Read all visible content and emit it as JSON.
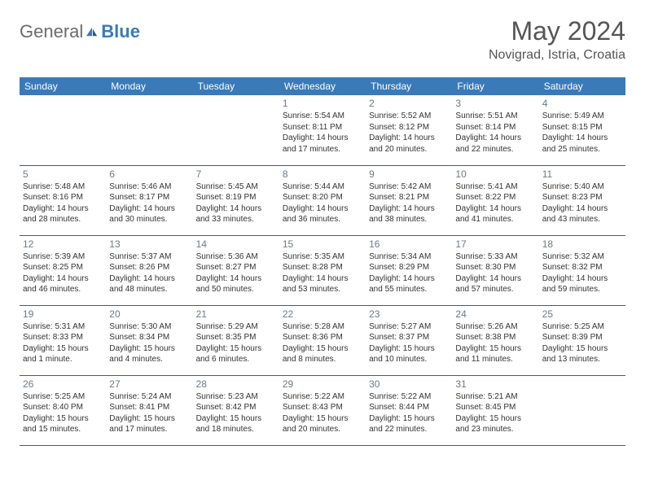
{
  "brand": {
    "part1": "General",
    "part2": "Blue"
  },
  "title": "May 2024",
  "location": "Novigrad, Istria, Croatia",
  "colors": {
    "header_bg": "#3a7ab8",
    "header_fg": "#ffffff",
    "border": "#3a5f7d",
    "daynum": "#6b7a88",
    "text": "#333333",
    "title": "#555555"
  },
  "dayHeaders": [
    "Sunday",
    "Monday",
    "Tuesday",
    "Wednesday",
    "Thursday",
    "Friday",
    "Saturday"
  ],
  "weeks": [
    [
      null,
      null,
      null,
      {
        "n": "1",
        "sr": "5:54 AM",
        "ss": "8:11 PM",
        "dl": "14 hours and 17 minutes."
      },
      {
        "n": "2",
        "sr": "5:52 AM",
        "ss": "8:12 PM",
        "dl": "14 hours and 20 minutes."
      },
      {
        "n": "3",
        "sr": "5:51 AM",
        "ss": "8:14 PM",
        "dl": "14 hours and 22 minutes."
      },
      {
        "n": "4",
        "sr": "5:49 AM",
        "ss": "8:15 PM",
        "dl": "14 hours and 25 minutes."
      }
    ],
    [
      {
        "n": "5",
        "sr": "5:48 AM",
        "ss": "8:16 PM",
        "dl": "14 hours and 28 minutes."
      },
      {
        "n": "6",
        "sr": "5:46 AM",
        "ss": "8:17 PM",
        "dl": "14 hours and 30 minutes."
      },
      {
        "n": "7",
        "sr": "5:45 AM",
        "ss": "8:19 PM",
        "dl": "14 hours and 33 minutes."
      },
      {
        "n": "8",
        "sr": "5:44 AM",
        "ss": "8:20 PM",
        "dl": "14 hours and 36 minutes."
      },
      {
        "n": "9",
        "sr": "5:42 AM",
        "ss": "8:21 PM",
        "dl": "14 hours and 38 minutes."
      },
      {
        "n": "10",
        "sr": "5:41 AM",
        "ss": "8:22 PM",
        "dl": "14 hours and 41 minutes."
      },
      {
        "n": "11",
        "sr": "5:40 AM",
        "ss": "8:23 PM",
        "dl": "14 hours and 43 minutes."
      }
    ],
    [
      {
        "n": "12",
        "sr": "5:39 AM",
        "ss": "8:25 PM",
        "dl": "14 hours and 46 minutes."
      },
      {
        "n": "13",
        "sr": "5:37 AM",
        "ss": "8:26 PM",
        "dl": "14 hours and 48 minutes."
      },
      {
        "n": "14",
        "sr": "5:36 AM",
        "ss": "8:27 PM",
        "dl": "14 hours and 50 minutes."
      },
      {
        "n": "15",
        "sr": "5:35 AM",
        "ss": "8:28 PM",
        "dl": "14 hours and 53 minutes."
      },
      {
        "n": "16",
        "sr": "5:34 AM",
        "ss": "8:29 PM",
        "dl": "14 hours and 55 minutes."
      },
      {
        "n": "17",
        "sr": "5:33 AM",
        "ss": "8:30 PM",
        "dl": "14 hours and 57 minutes."
      },
      {
        "n": "18",
        "sr": "5:32 AM",
        "ss": "8:32 PM",
        "dl": "14 hours and 59 minutes."
      }
    ],
    [
      {
        "n": "19",
        "sr": "5:31 AM",
        "ss": "8:33 PM",
        "dl": "15 hours and 1 minute."
      },
      {
        "n": "20",
        "sr": "5:30 AM",
        "ss": "8:34 PM",
        "dl": "15 hours and 4 minutes."
      },
      {
        "n": "21",
        "sr": "5:29 AM",
        "ss": "8:35 PM",
        "dl": "15 hours and 6 minutes."
      },
      {
        "n": "22",
        "sr": "5:28 AM",
        "ss": "8:36 PM",
        "dl": "15 hours and 8 minutes."
      },
      {
        "n": "23",
        "sr": "5:27 AM",
        "ss": "8:37 PM",
        "dl": "15 hours and 10 minutes."
      },
      {
        "n": "24",
        "sr": "5:26 AM",
        "ss": "8:38 PM",
        "dl": "15 hours and 11 minutes."
      },
      {
        "n": "25",
        "sr": "5:25 AM",
        "ss": "8:39 PM",
        "dl": "15 hours and 13 minutes."
      }
    ],
    [
      {
        "n": "26",
        "sr": "5:25 AM",
        "ss": "8:40 PM",
        "dl": "15 hours and 15 minutes."
      },
      {
        "n": "27",
        "sr": "5:24 AM",
        "ss": "8:41 PM",
        "dl": "15 hours and 17 minutes."
      },
      {
        "n": "28",
        "sr": "5:23 AM",
        "ss": "8:42 PM",
        "dl": "15 hours and 18 minutes."
      },
      {
        "n": "29",
        "sr": "5:22 AM",
        "ss": "8:43 PM",
        "dl": "15 hours and 20 minutes."
      },
      {
        "n": "30",
        "sr": "5:22 AM",
        "ss": "8:44 PM",
        "dl": "15 hours and 22 minutes."
      },
      {
        "n": "31",
        "sr": "5:21 AM",
        "ss": "8:45 PM",
        "dl": "15 hours and 23 minutes."
      },
      null
    ]
  ],
  "labels": {
    "sunrise": "Sunrise: ",
    "sunset": "Sunset: ",
    "daylight": "Daylight: "
  }
}
